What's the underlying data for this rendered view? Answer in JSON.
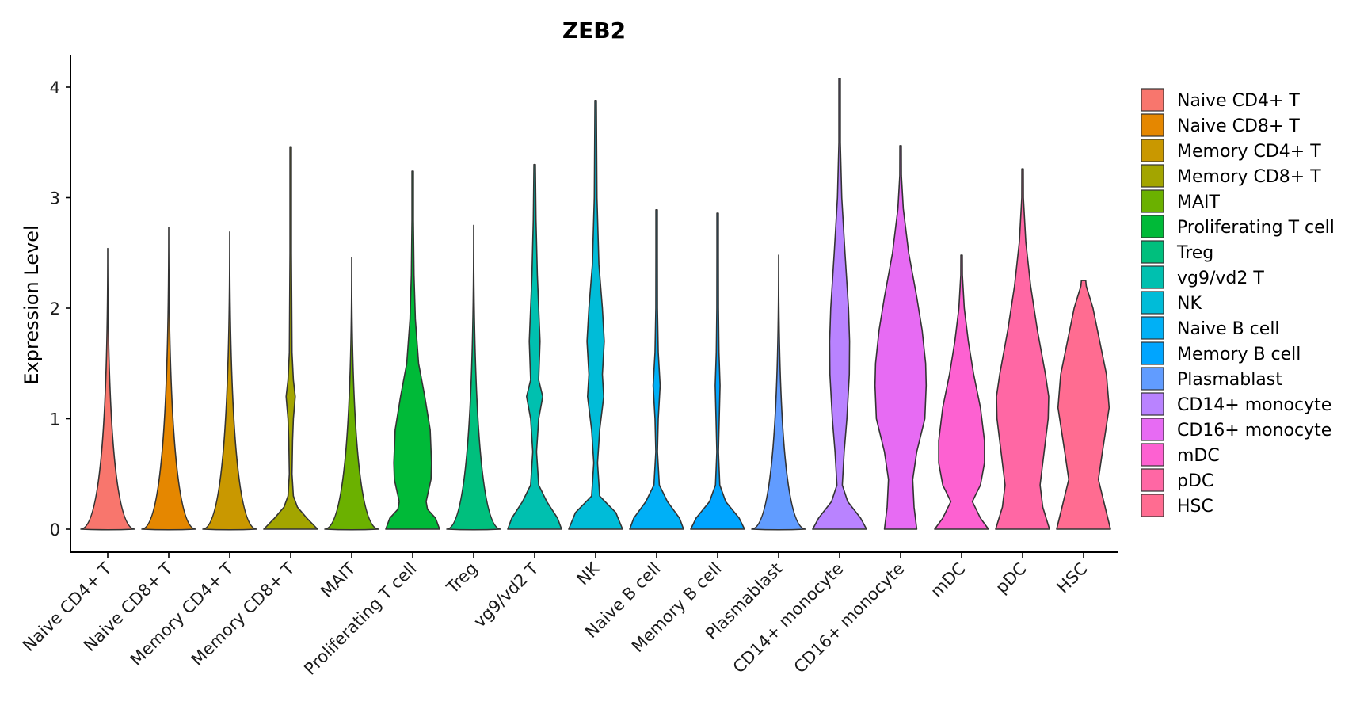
{
  "chart_data": {
    "type": "violin",
    "title": "ZEB2",
    "xlabel": "",
    "ylabel": "Expression Level",
    "ylim": [
      -0.2,
      4.28
    ],
    "yticks": [
      0,
      1,
      2,
      3,
      4
    ],
    "ytick_labels": [
      "0",
      "1",
      "2",
      "3",
      "4"
    ],
    "grid": false,
    "legend_position": "right",
    "categories": [
      "Naive CD4+ T",
      "Naive CD8+ T",
      "Memory CD4+ T",
      "Memory CD8+ T",
      "MAIT",
      "Proliferating T cell",
      "Treg",
      "vg9/vd2 T",
      "NK",
      "Naive B cell",
      "Memory B cell",
      "Plasmablast",
      "CD14+ monocyte",
      "CD16+ monocyte",
      "mDC",
      "pDC",
      "HSC"
    ],
    "colors": [
      "#F8766D",
      "#E58700",
      "#C99800",
      "#A3A500",
      "#6BB100",
      "#00BA38",
      "#00BF7D",
      "#00C0AF",
      "#00BCD8",
      "#00B0F6",
      "#00A5FF",
      "#619CFF",
      "#B983FF",
      "#E76BF3",
      "#FD61D1",
      "#FF67A4",
      "#FF6C91"
    ],
    "series": [
      {
        "name": "Naive CD4+ T",
        "ymax": 2.54,
        "flat": true,
        "profile": []
      },
      {
        "name": "Naive CD8+ T",
        "ymax": 2.73,
        "flat": true,
        "profile": []
      },
      {
        "name": "Memory CD4+ T",
        "ymax": 2.69,
        "flat": true,
        "profile": []
      },
      {
        "name": "Memory CD8+ T",
        "ymax": 3.46,
        "flat": false,
        "profile": [
          [
            0,
            1
          ],
          [
            0.1,
            0.6
          ],
          [
            0.2,
            0.25
          ],
          [
            0.3,
            0.1
          ],
          [
            0.5,
            0.05
          ],
          [
            0.8,
            0.07
          ],
          [
            1.0,
            0.1
          ],
          [
            1.2,
            0.17
          ],
          [
            1.35,
            0.1
          ],
          [
            1.6,
            0.05
          ],
          [
            2.0,
            0.04
          ],
          [
            2.5,
            0.02
          ],
          [
            3.0,
            0.01
          ],
          [
            3.46,
            0
          ]
        ]
      },
      {
        "name": "MAIT",
        "ymax": 2.46,
        "flat": true,
        "profile": []
      },
      {
        "name": "Proliferating T cell",
        "ymax": 3.24,
        "flat": false,
        "profile": [
          [
            0,
            1
          ],
          [
            0.1,
            0.85
          ],
          [
            0.18,
            0.55
          ],
          [
            0.25,
            0.5
          ],
          [
            0.45,
            0.68
          ],
          [
            0.6,
            0.7
          ],
          [
            0.9,
            0.65
          ],
          [
            1.2,
            0.45
          ],
          [
            1.5,
            0.22
          ],
          [
            1.9,
            0.1
          ],
          [
            2.3,
            0.05
          ],
          [
            2.8,
            0.02
          ],
          [
            3.24,
            0
          ]
        ]
      },
      {
        "name": "Treg",
        "ymax": 2.75,
        "flat": true,
        "profile": []
      },
      {
        "name": "vg9/vd2 T",
        "ymax": 3.3,
        "flat": false,
        "profile": [
          [
            0,
            1
          ],
          [
            0.1,
            0.85
          ],
          [
            0.25,
            0.45
          ],
          [
            0.4,
            0.15
          ],
          [
            0.7,
            0.07
          ],
          [
            1.0,
            0.15
          ],
          [
            1.2,
            0.3
          ],
          [
            1.35,
            0.15
          ],
          [
            1.7,
            0.2
          ],
          [
            2.0,
            0.15
          ],
          [
            2.3,
            0.1
          ],
          [
            2.8,
            0.05
          ],
          [
            3.3,
            0
          ]
        ]
      },
      {
        "name": "NK",
        "ymax": 3.88,
        "flat": false,
        "profile": [
          [
            0,
            1
          ],
          [
            0.15,
            0.75
          ],
          [
            0.3,
            0.15
          ],
          [
            0.6,
            0.07
          ],
          [
            0.9,
            0.15
          ],
          [
            1.2,
            0.3
          ],
          [
            1.4,
            0.25
          ],
          [
            1.7,
            0.32
          ],
          [
            2.0,
            0.25
          ],
          [
            2.4,
            0.12
          ],
          [
            3.0,
            0.05
          ],
          [
            3.88,
            0
          ]
        ]
      },
      {
        "name": "Naive B cell",
        "ymax": 2.89,
        "flat": false,
        "profile": [
          [
            0,
            1
          ],
          [
            0.1,
            0.85
          ],
          [
            0.25,
            0.4
          ],
          [
            0.4,
            0.1
          ],
          [
            0.7,
            0.03
          ],
          [
            1.0,
            0.06
          ],
          [
            1.3,
            0.13
          ],
          [
            1.6,
            0.06
          ],
          [
            2.0,
            0.03
          ],
          [
            2.5,
            0.015
          ],
          [
            2.89,
            0
          ]
        ]
      },
      {
        "name": "Memory B cell",
        "ymax": 2.86,
        "flat": false,
        "profile": [
          [
            0,
            1
          ],
          [
            0.1,
            0.8
          ],
          [
            0.25,
            0.3
          ],
          [
            0.4,
            0.08
          ],
          [
            0.7,
            0.03
          ],
          [
            1.0,
            0.06
          ],
          [
            1.3,
            0.09
          ],
          [
            1.6,
            0.05
          ],
          [
            2.0,
            0.03
          ],
          [
            2.5,
            0.015
          ],
          [
            2.86,
            0
          ]
        ]
      },
      {
        "name": "Plasmablast",
        "ymax": 2.48,
        "flat": true,
        "profile": []
      },
      {
        "name": "CD14+ monocyte",
        "ymax": 4.08,
        "flat": false,
        "profile": [
          [
            0,
            1
          ],
          [
            0.1,
            0.78
          ],
          [
            0.25,
            0.3
          ],
          [
            0.4,
            0.1
          ],
          [
            0.7,
            0.17
          ],
          [
            1.0,
            0.27
          ],
          [
            1.4,
            0.36
          ],
          [
            1.7,
            0.37
          ],
          [
            2.0,
            0.33
          ],
          [
            2.5,
            0.2
          ],
          [
            3.0,
            0.08
          ],
          [
            3.5,
            0.02
          ],
          [
            4.08,
            0
          ]
        ]
      },
      {
        "name": "CD16+ monocyte",
        "ymax": 3.47,
        "flat": false,
        "profile": [
          [
            0,
            0.6
          ],
          [
            0.2,
            0.5
          ],
          [
            0.45,
            0.45
          ],
          [
            0.7,
            0.6
          ],
          [
            1.0,
            0.9
          ],
          [
            1.3,
            0.95
          ],
          [
            1.5,
            0.93
          ],
          [
            1.8,
            0.8
          ],
          [
            2.1,
            0.6
          ],
          [
            2.5,
            0.3
          ],
          [
            2.9,
            0.1
          ],
          [
            3.2,
            0.03
          ],
          [
            3.47,
            0
          ]
        ]
      },
      {
        "name": "mDC",
        "ymax": 2.48,
        "flat": false,
        "profile": [
          [
            0,
            1
          ],
          [
            0.1,
            0.7
          ],
          [
            0.25,
            0.4
          ],
          [
            0.4,
            0.7
          ],
          [
            0.6,
            0.85
          ],
          [
            0.8,
            0.85
          ],
          [
            1.1,
            0.7
          ],
          [
            1.4,
            0.45
          ],
          [
            1.7,
            0.25
          ],
          [
            2.0,
            0.1
          ],
          [
            2.3,
            0.03
          ],
          [
            2.48,
            0
          ]
        ]
      },
      {
        "name": "pDC",
        "ymax": 3.26,
        "flat": false,
        "profile": [
          [
            0,
            1
          ],
          [
            0.2,
            0.75
          ],
          [
            0.4,
            0.65
          ],
          [
            0.7,
            0.8
          ],
          [
            1.0,
            0.95
          ],
          [
            1.2,
            0.97
          ],
          [
            1.4,
            0.85
          ],
          [
            1.8,
            0.55
          ],
          [
            2.2,
            0.3
          ],
          [
            2.6,
            0.12
          ],
          [
            3.0,
            0.03
          ],
          [
            3.26,
            0
          ]
        ]
      },
      {
        "name": "HSC",
        "ymax": 2.25,
        "flat": false,
        "profile": [
          [
            0,
            1
          ],
          [
            0.2,
            0.8
          ],
          [
            0.45,
            0.55
          ],
          [
            0.7,
            0.7
          ],
          [
            1.1,
            0.95
          ],
          [
            1.4,
            0.85
          ],
          [
            1.7,
            0.6
          ],
          [
            2.0,
            0.35
          ],
          [
            2.2,
            0.1
          ],
          [
            2.25,
            0.08
          ]
        ]
      }
    ]
  }
}
